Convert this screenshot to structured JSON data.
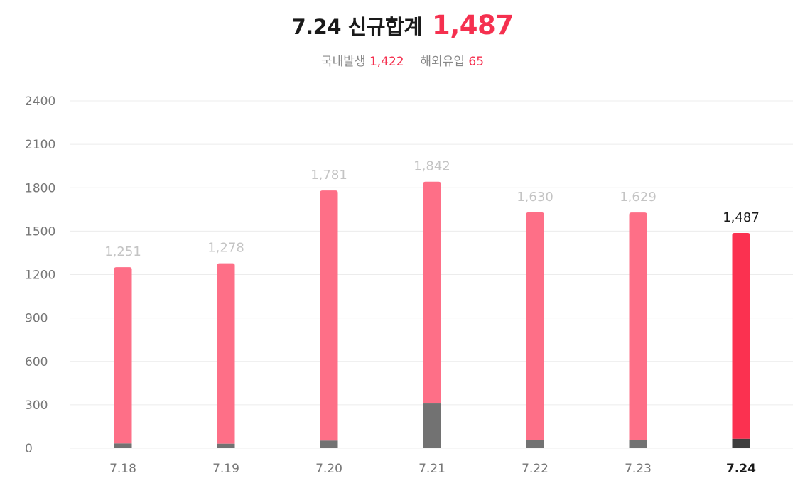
{
  "header": {
    "date": "7.24",
    "title_text": "신규합계",
    "total": "1,487",
    "domestic_label": "국내발생",
    "domestic_value": "1,422",
    "overseas_label": "해외유입",
    "overseas_value": "65"
  },
  "colors": {
    "local_bar": "#fe6f87",
    "local_bar_current": "#fb3150",
    "import_bar": "#727272",
    "import_bar_current": "#3e3e3e"
  },
  "chart_data": {
    "type": "bar",
    "stacked": true,
    "categories": [
      "7.18",
      "7.19",
      "7.20",
      "7.21",
      "7.22",
      "7.23",
      "7.24"
    ],
    "series": [
      {
        "name": "해외유입",
        "values": [
          33,
          31,
          53,
          309,
          56,
          54,
          65
        ]
      },
      {
        "name": "국내발생",
        "values": [
          1218,
          1247,
          1728,
          1533,
          1574,
          1575,
          1422
        ]
      }
    ],
    "totals": [
      1251,
      1278,
      1781,
      1842,
      1630,
      1629,
      1487
    ],
    "total_labels": [
      "1,251",
      "1,278",
      "1,781",
      "1,842",
      "1,630",
      "1,629",
      "1,487"
    ],
    "yticks": [
      0,
      300,
      600,
      900,
      1200,
      1500,
      1800,
      2100,
      2400
    ],
    "ylim": [
      0,
      2400
    ],
    "highlight_index": 6,
    "grid": true
  }
}
